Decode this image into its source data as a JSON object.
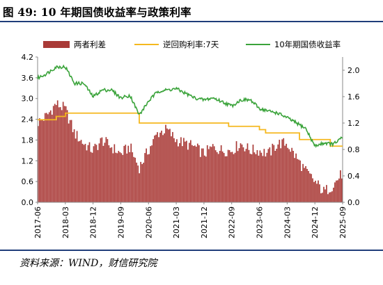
{
  "figure": {
    "title": "图 49:  10 年期国债收益率与政策利率",
    "source": "资料来源：WIND，财信研究院"
  },
  "chart_data": {
    "type": "bar+line",
    "categories": [
      "2017-06",
      "2018-03",
      "2018-12",
      "2019-09",
      "2020-06",
      "2021-03",
      "2021-12",
      "2022-09",
      "2023-06",
      "2024-03",
      "2024-12",
      "2025-09"
    ],
    "left_axis": {
      "ylim": [
        0.0,
        4.2
      ],
      "ticks": [
        "0.0",
        "0.6",
        "1.2",
        "1.8",
        "2.4",
        "3.0",
        "3.6",
        "4.2"
      ]
    },
    "right_axis": {
      "ylim": [
        0.0,
        2.2
      ],
      "ticks": [
        "0.0",
        "0.4",
        "0.8",
        "1.2",
        "1.6",
        "2.0"
      ]
    },
    "series": [
      {
        "name": "两者利差",
        "kind": "bar",
        "axis": "left",
        "color": "#a93a37",
        "x": [
          "2017-06",
          "2017-09",
          "2017-12",
          "2018-03",
          "2018-06",
          "2018-09",
          "2018-12",
          "2019-03",
          "2019-06",
          "2019-09",
          "2019-12",
          "2020-03",
          "2020-06",
          "2020-09",
          "2020-12",
          "2021-03",
          "2021-06",
          "2021-09",
          "2021-12",
          "2022-03",
          "2022-06",
          "2022-09",
          "2022-12",
          "2023-03",
          "2023-06",
          "2023-09",
          "2023-12",
          "2024-03",
          "2024-06",
          "2024-09",
          "2024-12",
          "2025-03",
          "2025-06",
          "2025-09"
        ],
        "values": [
          2.3,
          2.5,
          2.85,
          2.7,
          2.0,
          1.7,
          1.5,
          1.8,
          1.6,
          1.4,
          1.6,
          1.0,
          1.5,
          2.0,
          2.1,
          1.8,
          1.7,
          1.6,
          1.4,
          1.6,
          1.5,
          1.5,
          1.7,
          1.5,
          1.5,
          1.4,
          1.7,
          1.7,
          1.3,
          0.9,
          0.6,
          0.3,
          0.5,
          0.85
        ]
      },
      {
        "name": "逆回购利率:7天",
        "kind": "line",
        "axis": "right",
        "color": "#f5b81e",
        "x": [
          "2017-06",
          "2017-12",
          "2018-03",
          "2019-12",
          "2020-03",
          "2022-08",
          "2023-06",
          "2023-08",
          "2024-07",
          "2025-05",
          "2025-09"
        ],
        "values": [
          1.25,
          1.3,
          1.35,
          1.35,
          1.2,
          1.15,
          1.1,
          1.05,
          0.95,
          0.85,
          0.85
        ]
      },
      {
        "name": "10年期国债收益率",
        "kind": "line",
        "axis": "right",
        "color": "#3aa33a",
        "x": [
          "2017-06",
          "2017-09",
          "2017-12",
          "2018-03",
          "2018-06",
          "2018-09",
          "2018-12",
          "2019-03",
          "2019-06",
          "2019-09",
          "2019-12",
          "2020-03",
          "2020-06",
          "2020-09",
          "2020-12",
          "2021-03",
          "2021-06",
          "2021-09",
          "2021-12",
          "2022-03",
          "2022-06",
          "2022-09",
          "2022-12",
          "2023-03",
          "2023-06",
          "2023-09",
          "2023-12",
          "2024-03",
          "2024-06",
          "2024-09",
          "2024-12",
          "2025-03",
          "2025-06",
          "2025-09"
        ],
        "values": [
          1.88,
          1.95,
          2.05,
          2.05,
          1.8,
          1.8,
          1.6,
          1.7,
          1.7,
          1.58,
          1.62,
          1.32,
          1.53,
          1.68,
          1.7,
          1.72,
          1.65,
          1.58,
          1.55,
          1.58,
          1.52,
          1.46,
          1.55,
          1.55,
          1.42,
          1.38,
          1.35,
          1.28,
          1.2,
          1.12,
          0.85,
          0.9,
          0.88,
          0.98
        ]
      }
    ],
    "legend_position": "top"
  }
}
